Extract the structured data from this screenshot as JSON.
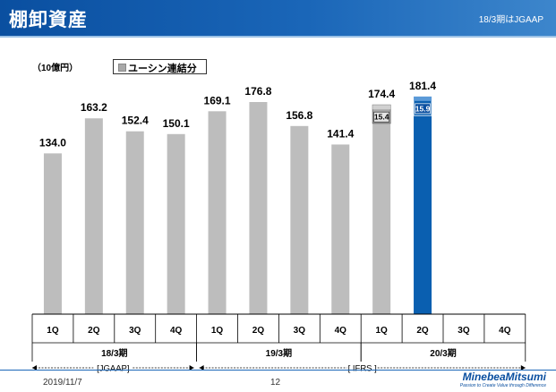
{
  "header": {
    "title": "棚卸資産",
    "note": "18/3期はJGAAP"
  },
  "unit_label": "（10億円）",
  "legend": {
    "label": "ユーシン連結分"
  },
  "chart_data": {
    "type": "bar",
    "categories": [
      "1Q",
      "2Q",
      "3Q",
      "4Q",
      "1Q",
      "2Q",
      "3Q",
      "4Q",
      "1Q",
      "2Q",
      "3Q",
      "4Q"
    ],
    "groups": [
      {
        "label": "18/3期",
        "start": 0,
        "end": 3
      },
      {
        "label": "19/3期",
        "start": 4,
        "end": 7
      },
      {
        "label": "20/3期",
        "start": 8,
        "end": 11
      }
    ],
    "values": [
      134.0,
      163.2,
      152.4,
      150.1,
      169.1,
      176.8,
      156.8,
      141.4,
      174.4,
      181.4,
      null,
      null
    ],
    "value_labels": [
      "134.0",
      "163.2",
      "152.4",
      "150.1",
      "169.1",
      "176.8",
      "156.8",
      "141.4",
      "174.4",
      "181.4",
      "",
      ""
    ],
    "yushin_portion": [
      {
        "index": 8,
        "value": 15.4,
        "label": "15.4"
      },
      {
        "index": 9,
        "value": 15.9,
        "label": "15.9"
      }
    ],
    "highlight_index": 9,
    "ylim": [
      0,
      195
    ],
    "standards": [
      {
        "label": "[JGAAP]",
        "start": 0,
        "end": 3
      },
      {
        "label": "[ IFRS ]",
        "start": 4,
        "end": 11
      }
    ]
  },
  "colors": {
    "bar": "#bdbdbd",
    "highlight": "#0a5fb0",
    "yushin_gray": "#a8a8a8",
    "header": "#0a4fa0"
  },
  "footer": {
    "date": "2019/11/7",
    "page": "12"
  },
  "logo": {
    "name": "MinebeaMitsumi",
    "tagline": "Passion to Create Value through Difference"
  }
}
